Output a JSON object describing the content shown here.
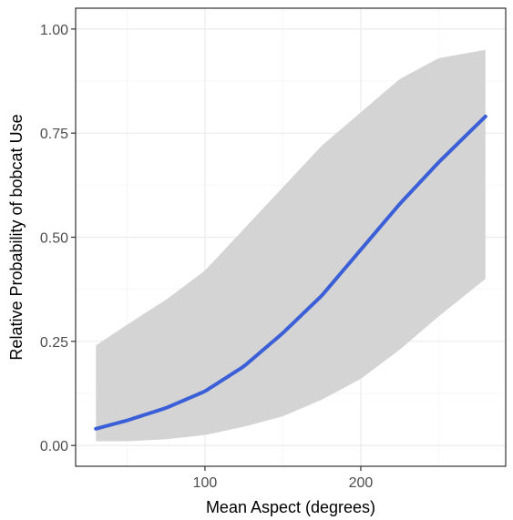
{
  "chart_data": {
    "type": "line",
    "title": "",
    "xlabel": "Mean Aspect (degrees)",
    "ylabel": "Relative Probability of bobcat Use",
    "xlim": [
      17,
      293
    ],
    "ylim": [
      -0.05,
      1.05
    ],
    "x_ticks": [
      {
        "value": 100,
        "label": "100"
      },
      {
        "value": 200,
        "label": "200"
      }
    ],
    "y_ticks": [
      {
        "value": 0.0,
        "label": "0.00"
      },
      {
        "value": 0.25,
        "label": "0.25"
      },
      {
        "value": 0.5,
        "label": "0.50"
      },
      {
        "value": 0.75,
        "label": "0.75"
      },
      {
        "value": 1.0,
        "label": "1.00"
      }
    ],
    "x_minor_gridlines": [
      50,
      150,
      250
    ],
    "y_minor_gridlines": [
      0.125,
      0.375,
      0.625,
      0.875
    ],
    "grid": true,
    "legend": "none",
    "series": [
      {
        "style": "fitted line with confidence band",
        "x": [
          30,
          50,
          75,
          100,
          125,
          150,
          175,
          200,
          225,
          250,
          280
        ],
        "y": [
          0.04,
          0.06,
          0.09,
          0.13,
          0.19,
          0.27,
          0.36,
          0.47,
          0.58,
          0.68,
          0.79
        ],
        "lower": [
          0.01,
          0.01,
          0.015,
          0.025,
          0.045,
          0.07,
          0.11,
          0.16,
          0.23,
          0.31,
          0.4
        ],
        "upper": [
          0.24,
          0.29,
          0.35,
          0.42,
          0.52,
          0.62,
          0.72,
          0.8,
          0.88,
          0.93,
          0.95
        ]
      }
    ],
    "colors": {
      "line": "#3a5fd6",
      "band": "#d4d4d4",
      "panel_border": "#333333",
      "grid_major": "#ebebeb",
      "grid_minor": "#f5f5f5",
      "tick_text": "#4d4d4d",
      "axis_text": "#000000"
    }
  }
}
